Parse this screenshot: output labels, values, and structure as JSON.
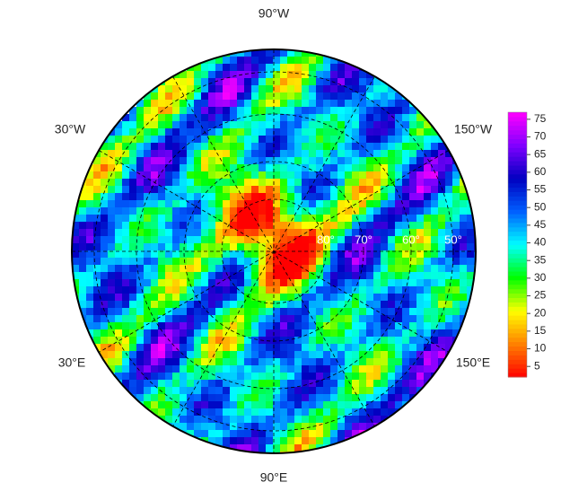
{
  "map": {
    "longitude_labels": {
      "top": "90°W",
      "upper_left": "30°W",
      "upper_right": "150°W",
      "lower_left": "30°E",
      "lower_right": "150°E",
      "bottom": "90°E"
    },
    "latitude_labels": [
      "80°",
      "70°",
      "60°",
      "50°"
    ],
    "colorbar": {
      "lim": [
        2,
        77
      ],
      "ticks": [
        5,
        10,
        15,
        20,
        25,
        30,
        35,
        40,
        45,
        50,
        55,
        60,
        65,
        70,
        75
      ],
      "colors": [
        "#ff0000",
        "#ff8000",
        "#ffff00",
        "#00ff00",
        "#00ffff",
        "#0060ff",
        "#0000c0",
        "#8000ff",
        "#ff00ff"
      ]
    }
  }
}
